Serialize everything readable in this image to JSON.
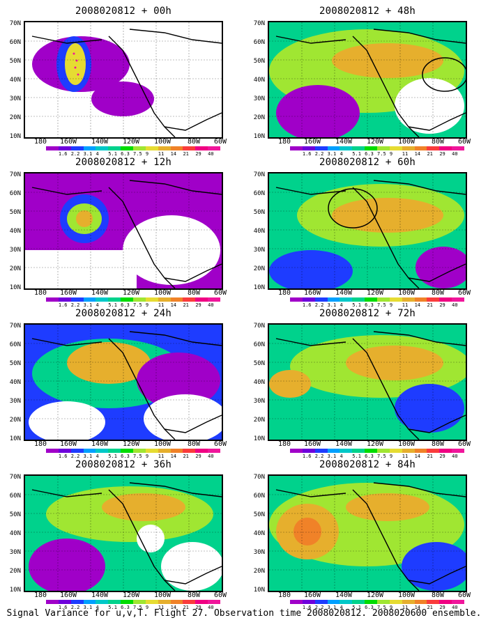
{
  "panels": [
    {
      "title": "2008020812 + 00h"
    },
    {
      "title": "2008020812 + 48h"
    },
    {
      "title": "2008020812 + 12h"
    },
    {
      "title": "2008020812 + 60h"
    },
    {
      "title": "2008020812 + 24h"
    },
    {
      "title": "2008020812 + 72h"
    },
    {
      "title": "2008020812 + 36h"
    },
    {
      "title": "2008020812 + 84h"
    }
  ],
  "lat_labels": [
    "70N",
    "60N",
    "50N",
    "40N",
    "30N",
    "20N",
    "10N"
  ],
  "lon_labels": [
    "180",
    "160W",
    "140W",
    "120W",
    "100W",
    "80W",
    "60W"
  ],
  "colorbar": {
    "labels": [
      "1.6",
      "2.2",
      "3.1",
      "4",
      "5.1",
      "6.3",
      "7.5",
      "9",
      "11",
      "14",
      "21",
      "29",
      "40"
    ],
    "colors": [
      "#a000c8",
      "#6e00dc",
      "#1e3cff",
      "#00a0ff",
      "#00c8c8",
      "#00d28c",
      "#00dc00",
      "#a0e632",
      "#e6dc32",
      "#e6af2d",
      "#f08228",
      "#fa3c3c",
      "#f00082",
      "#f0169b"
    ]
  },
  "caption": "Signal Variance for u,v,T. Flight 27. Observation time 2008020812. 2008020600 ensemble."
}
